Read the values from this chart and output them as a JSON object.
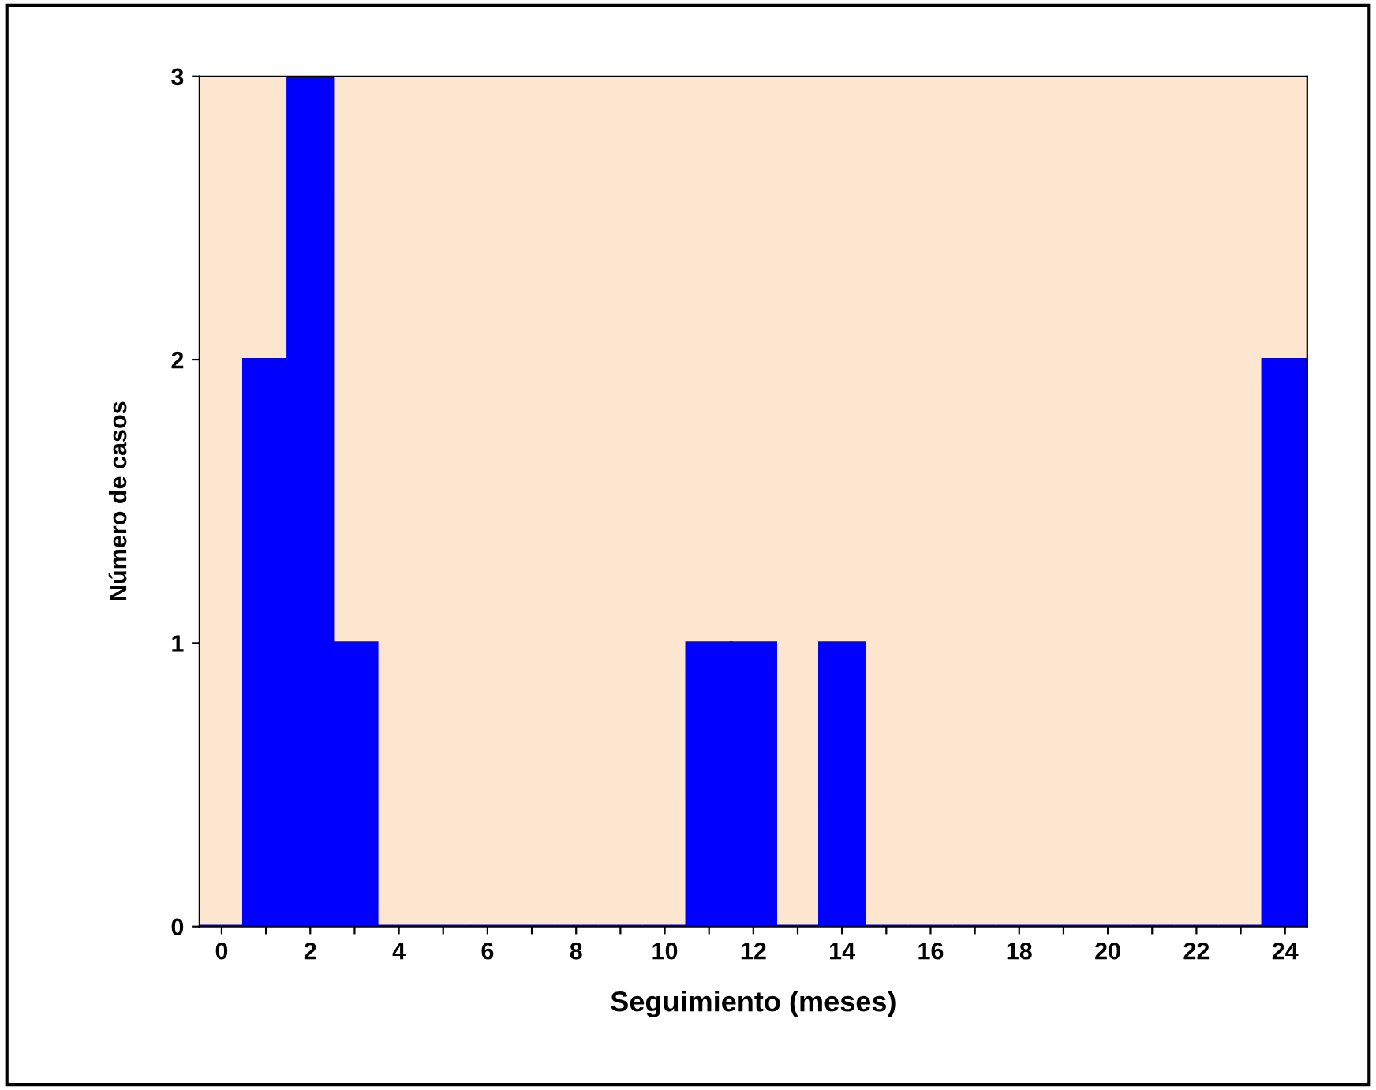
{
  "chart_data": {
    "type": "bar",
    "xlabel": "Seguimiento (meses)",
    "ylabel": "Número de casos",
    "categories": [
      "0",
      null,
      "2",
      null,
      "4",
      null,
      "6",
      null,
      "8",
      null,
      "10",
      null,
      "12",
      null,
      "14",
      null,
      "16",
      null,
      "18",
      null,
      "20",
      null,
      "22",
      null,
      "24"
    ],
    "values": [
      0,
      2,
      3,
      1,
      0,
      0,
      0,
      0,
      0,
      0,
      0,
      1,
      1,
      0,
      1,
      0,
      0,
      0,
      0,
      0,
      0,
      0,
      0,
      0,
      2
    ],
    "color": "#0000ff",
    "ylim": [
      0,
      3
    ],
    "yticks": [
      0,
      1,
      2,
      3
    ],
    "grid": false,
    "legend": false
  }
}
